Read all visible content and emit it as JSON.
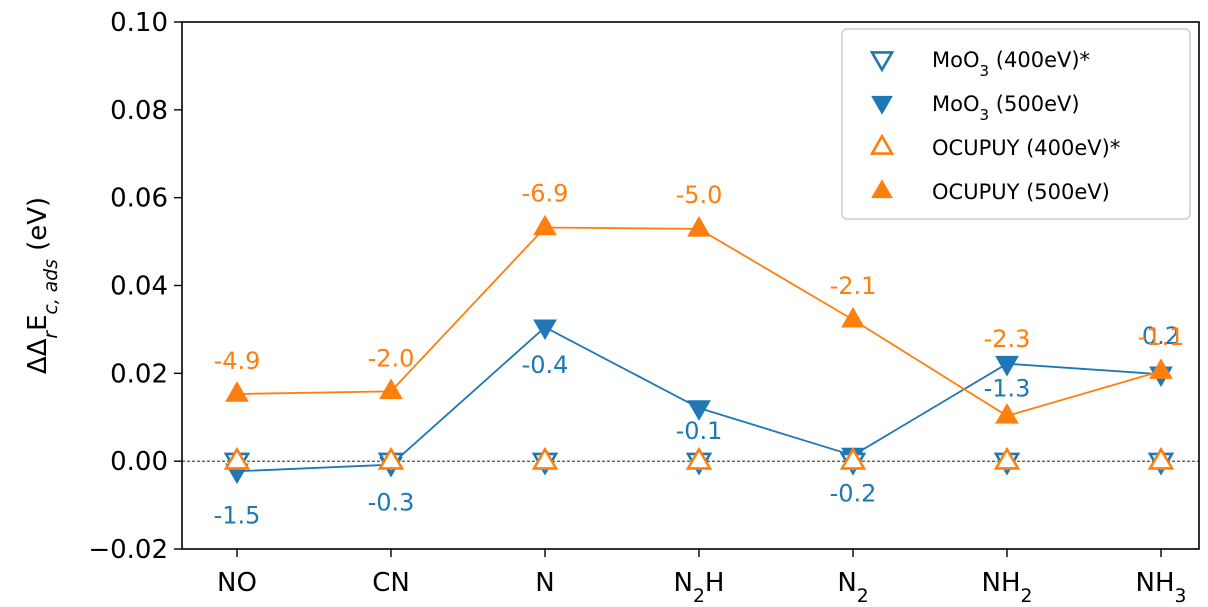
{
  "chart_data": {
    "type": "line",
    "categories": [
      "NO",
      "CN",
      "N",
      "N2H",
      "N2",
      "NH2",
      "NH3"
    ],
    "category_display": [
      {
        "base": "NO",
        "sub": ""
      },
      {
        "base": "CN",
        "sub": ""
      },
      {
        "base": "N",
        "sub": ""
      },
      {
        "base": "N",
        "sub": "2",
        "tail": "H"
      },
      {
        "base": "N",
        "sub": "2"
      },
      {
        "base": "NH",
        "sub": "2"
      },
      {
        "base": "NH",
        "sub": "3"
      }
    ],
    "ylabel": "ΔΔrEc,ads (eV)",
    "ylabel_parts": {
      "pre": "ΔΔ",
      "sub1": "r",
      "mid": "E",
      "sub2": "c, ads",
      "post": " (eV)"
    },
    "ylim": [
      -0.02,
      0.1
    ],
    "yticks": [
      "−0.02",
      "0.00",
      "0.02",
      "0.04",
      "0.06",
      "0.08",
      "0.10"
    ],
    "ytick_values": [
      -0.02,
      0.0,
      0.02,
      0.04,
      0.06,
      0.08,
      0.1
    ],
    "reference_line": 0.0,
    "legend_position": "top-right",
    "series": [
      {
        "name": "MoO3 (400eV)*",
        "legend": {
          "pre": "MoO",
          "sub": "3",
          "post": " (400eV)*"
        },
        "marker": "triangle-down-open",
        "color": "#1f77b4",
        "line": false,
        "values": [
          0.0,
          0.0,
          0.0,
          0.0,
          0.0,
          0.0,
          0.0
        ]
      },
      {
        "name": "MoO3 (500eV)",
        "legend": {
          "pre": "MoO",
          "sub": "3",
          "post": " (500eV)"
        },
        "marker": "triangle-down-filled",
        "color": "#1f77b4",
        "line": true,
        "values": [
          -0.0023,
          -0.0008,
          0.0305,
          0.0121,
          0.0013,
          0.0222,
          0.0198
        ],
        "labels": [
          "-1.5",
          "-0.3",
          "-0.4",
          "-0.1",
          "-0.2",
          "-1.3",
          "0.2"
        ]
      },
      {
        "name": "OCUPUY (400eV)*",
        "legend": {
          "pre": "OCUPUY",
          "sub": "",
          "post": " (400eV)*"
        },
        "marker": "triangle-up-open",
        "color": "#ff7f0e",
        "line": false,
        "values": [
          0.0,
          0.0,
          0.0,
          0.0,
          0.0,
          0.0,
          0.0
        ]
      },
      {
        "name": "OCUPUY (500eV)",
        "legend": {
          "pre": "OCUPUY",
          "sub": "",
          "post": " (500eV)"
        },
        "marker": "triangle-up-filled",
        "color": "#ff7f0e",
        "line": true,
        "values": [
          0.0153,
          0.0159,
          0.0532,
          0.0529,
          0.0322,
          0.0103,
          0.0205
        ],
        "labels": [
          "-4.9",
          "-2.0",
          "-6.9",
          "-5.0",
          "-2.1",
          "-2.3",
          "-1.1"
        ]
      }
    ]
  }
}
